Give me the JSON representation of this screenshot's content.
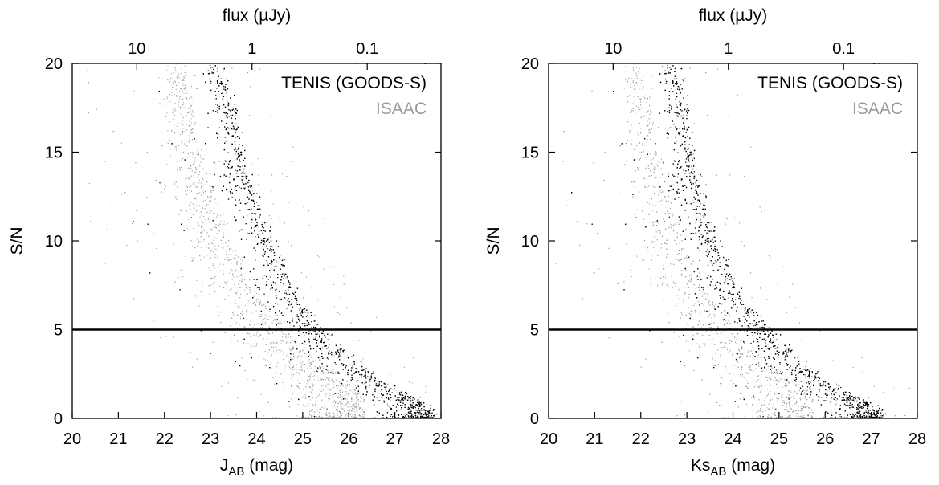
{
  "chart_data": [
    {
      "type": "scatter",
      "panel": "left",
      "xlabel": {
        "main": "J",
        "sub": "AB",
        "unit": " (mag)"
      },
      "ylabel": "S/N",
      "x2label": "flux (µJy)",
      "xlim": [
        20,
        28
      ],
      "ylim": [
        0,
        20
      ],
      "xticks": [
        "20",
        "21",
        "22",
        "23",
        "24",
        "25",
        "26",
        "27",
        "28"
      ],
      "yticks": [
        "0",
        "5",
        "10",
        "15",
        "20"
      ],
      "x2ticks": [
        {
          "label": "10",
          "mag": 21.4
        },
        {
          "label": "1",
          "mag": 23.9
        },
        {
          "label": "0.1",
          "mag": 26.4
        }
      ],
      "hline": 5,
      "legend_position": "top-right",
      "series": [
        {
          "name": "TENIS (GOODS-S)",
          "color": "#000000",
          "trend": [
            [
              23.2,
              20
            ],
            [
              23.5,
              17.5
            ],
            [
              23.8,
              14
            ],
            [
              24.2,
              11
            ],
            [
              24.6,
              8.5
            ],
            [
              25.0,
              6.5
            ],
            [
              25.4,
              5.1
            ],
            [
              25.8,
              4.0
            ],
            [
              26.3,
              3.0
            ],
            [
              26.8,
              2.0
            ],
            [
              27.3,
              1.3
            ],
            [
              27.8,
              0.6
            ]
          ]
        },
        {
          "name": "ISAAC",
          "color": "#9a9a9a",
          "trend": [
            [
              22.4,
              20
            ],
            [
              22.7,
              16
            ],
            [
              23.0,
              13
            ],
            [
              23.4,
              10
            ],
            [
              23.8,
              8.0
            ],
            [
              24.2,
              6.5
            ],
            [
              24.6,
              5.1
            ],
            [
              25.0,
              4.0
            ],
            [
              25.4,
              3.0
            ],
            [
              25.8,
              2.2
            ],
            [
              26.3,
              1.5
            ]
          ]
        }
      ]
    },
    {
      "type": "scatter",
      "panel": "right",
      "xlabel": {
        "main": "Ks",
        "sub": "AB",
        "unit": " (mag)"
      },
      "ylabel": "S/N",
      "x2label": "flux (µJy)",
      "xlim": [
        20,
        28
      ],
      "ylim": [
        0,
        20
      ],
      "xticks": [
        "20",
        "21",
        "22",
        "23",
        "24",
        "25",
        "26",
        "27",
        "28"
      ],
      "yticks": [
        "0",
        "5",
        "10",
        "15",
        "20"
      ],
      "x2ticks": [
        {
          "label": "10",
          "mag": 21.4
        },
        {
          "label": "1",
          "mag": 23.9
        },
        {
          "label": "0.1",
          "mag": 26.4
        }
      ],
      "hline": 5,
      "legend_position": "top-right",
      "series": [
        {
          "name": "TENIS (GOODS-S)",
          "color": "#000000",
          "trend": [
            [
              22.8,
              20
            ],
            [
              23.0,
              17
            ],
            [
              23.2,
              14
            ],
            [
              23.5,
              11
            ],
            [
              23.9,
              8.5
            ],
            [
              24.3,
              6.5
            ],
            [
              24.8,
              5.1
            ],
            [
              25.2,
              4.0
            ],
            [
              25.6,
              3.0
            ],
            [
              26.1,
              2.0
            ],
            [
              26.6,
              1.3
            ],
            [
              27.2,
              0.6
            ]
          ]
        },
        {
          "name": "ISAAC",
          "color": "#9a9a9a",
          "trend": [
            [
              22.0,
              20
            ],
            [
              22.3,
              16
            ],
            [
              22.6,
              13
            ],
            [
              22.9,
              10
            ],
            [
              23.2,
              8.0
            ],
            [
              23.6,
              6.5
            ],
            [
              24.0,
              5.1
            ],
            [
              24.4,
              4.0
            ],
            [
              24.8,
              3.0
            ],
            [
              25.2,
              2.2
            ],
            [
              25.7,
              1.5
            ]
          ]
        }
      ]
    }
  ]
}
